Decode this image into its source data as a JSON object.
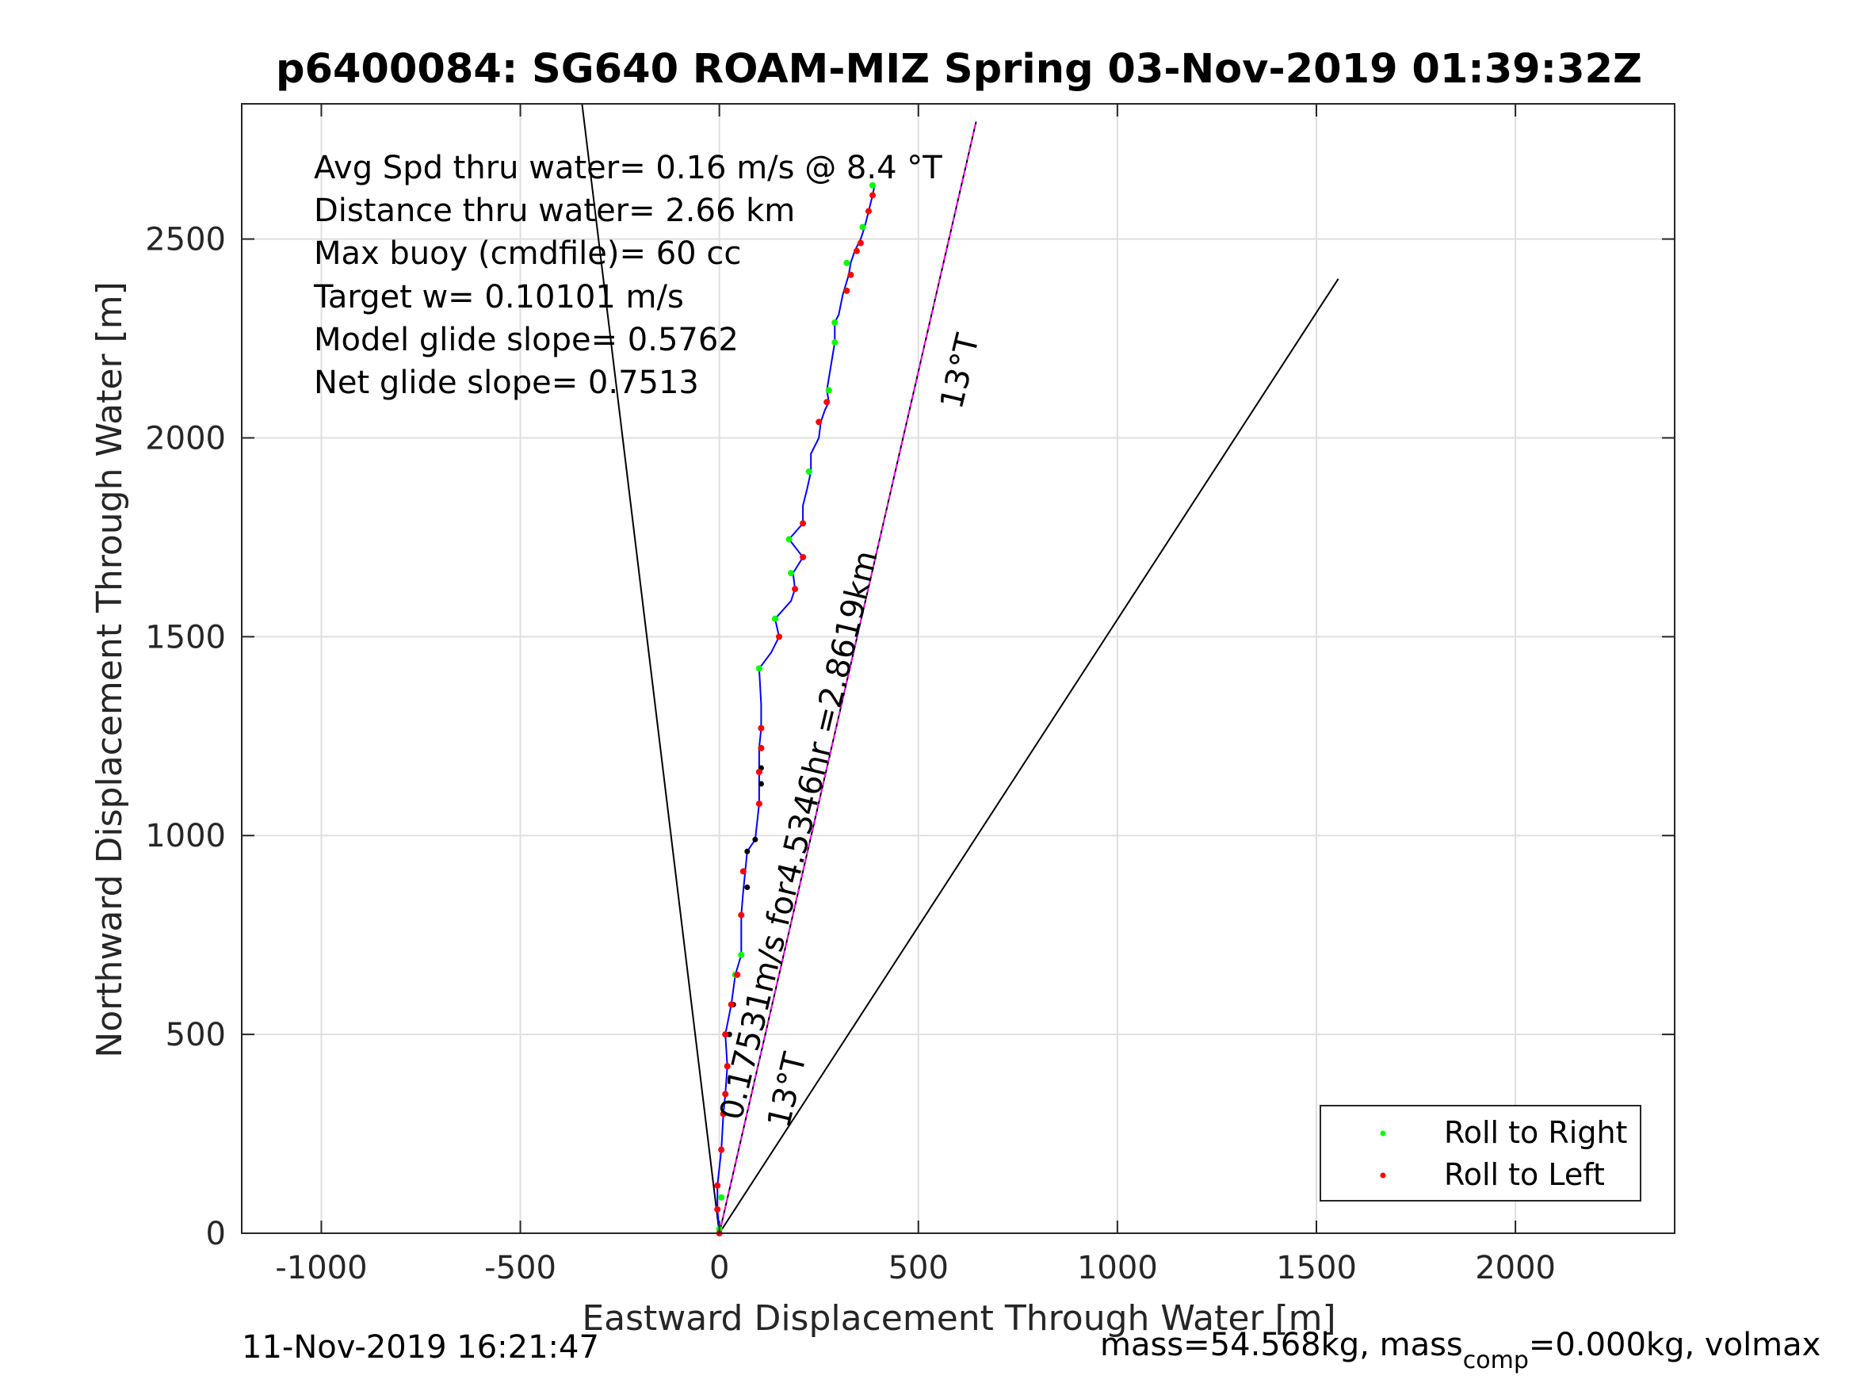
{
  "chart_data": {
    "type": "scatter",
    "title": "p6400084: SG640 ROAM-MIZ Spring 03-Nov-2019 01:39:32Z",
    "xlabel": "Eastward Displacement Through Water [m]",
    "ylabel": "Northward Displacement Through Water [m]",
    "xlim": [
      -1200,
      2400
    ],
    "ylim": [
      0,
      2840
    ],
    "xticks": [
      -1000,
      -500,
      0,
      500,
      1000,
      1500,
      2000
    ],
    "yticks": [
      0,
      500,
      1000,
      1500,
      2000,
      2500
    ],
    "grid": true,
    "legend_position": "bottom-right",
    "colors": {
      "track": "#0000ff",
      "right": "#00ff00",
      "left": "#ff0000",
      "point": "#000000",
      "current": "#ff00ff",
      "line": "#000000"
    },
    "stats": [
      "Avg Spd thru water=  0.16 m/s @   8.4 °T",
      "Distance thru water=  2.66 km",
      "Max buoy (cmdfile)= 60 cc",
      "Target w= 0.10101 m/s",
      "Model glide slope= 0.5762",
      "Net glide slope= 0.7513"
    ],
    "annotations": {
      "current_label": "0.17531m/s for4.5346hr =2.8619km",
      "heading_label_1": "13°T",
      "heading_label_2": "13°T"
    },
    "legend": [
      {
        "name": "Roll to Right",
        "color": "#00ff00"
      },
      {
        "name": "Roll to Left",
        "color": "#ff0000"
      }
    ],
    "heading_lines": [
      {
        "from": [
          0,
          0
        ],
        "to": [
          -345,
          2840
        ]
      },
      {
        "from": [
          0,
          0
        ],
        "to": [
          1555,
          2400
        ]
      },
      {
        "from": [
          0,
          0
        ],
        "to": [
          645,
          2795
        ]
      }
    ],
    "track": [
      [
        0,
        0
      ],
      [
        -5,
        60
      ],
      [
        -5,
        120
      ],
      [
        5,
        210
      ],
      [
        10,
        300
      ],
      [
        15,
        350
      ],
      [
        20,
        420
      ],
      [
        15,
        500
      ],
      [
        30,
        575
      ],
      [
        40,
        650
      ],
      [
        55,
        700
      ],
      [
        55,
        800
      ],
      [
        60,
        860
      ],
      [
        65,
        910
      ],
      [
        70,
        960
      ],
      [
        90,
        990
      ],
      [
        100,
        1080
      ],
      [
        100,
        1130
      ],
      [
        100,
        1160
      ],
      [
        100,
        1220
      ],
      [
        105,
        1270
      ],
      [
        105,
        1330
      ],
      [
        100,
        1420
      ],
      [
        130,
        1460
      ],
      [
        150,
        1500
      ],
      [
        140,
        1545
      ],
      [
        180,
        1590
      ],
      [
        190,
        1620
      ],
      [
        185,
        1660
      ],
      [
        210,
        1700
      ],
      [
        175,
        1745
      ],
      [
        210,
        1785
      ],
      [
        210,
        1830
      ],
      [
        220,
        1870
      ],
      [
        230,
        1915
      ],
      [
        230,
        1960
      ],
      [
        250,
        2000
      ],
      [
        255,
        2040
      ],
      [
        265,
        2070
      ],
      [
        275,
        2090
      ],
      [
        270,
        2120
      ],
      [
        280,
        2180
      ],
      [
        290,
        2240
      ],
      [
        290,
        2290
      ],
      [
        300,
        2310
      ],
      [
        310,
        2360
      ],
      [
        325,
        2410
      ],
      [
        330,
        2440
      ],
      [
        340,
        2470
      ],
      [
        355,
        2500
      ],
      [
        365,
        2530
      ],
      [
        375,
        2570
      ],
      [
        385,
        2610
      ],
      [
        390,
        2635
      ]
    ],
    "right_points": [
      [
        0,
        10
      ],
      [
        5,
        90
      ],
      [
        40,
        650
      ],
      [
        55,
        700
      ],
      [
        100,
        1420
      ],
      [
        140,
        1545
      ],
      [
        180,
        1660
      ],
      [
        175,
        1745
      ],
      [
        225,
        1915
      ],
      [
        275,
        2120
      ],
      [
        290,
        2240
      ],
      [
        290,
        2290
      ],
      [
        320,
        2440
      ],
      [
        360,
        2530
      ],
      [
        385,
        2635
      ]
    ],
    "left_points": [
      [
        0,
        0
      ],
      [
        -5,
        60
      ],
      [
        -5,
        120
      ],
      [
        5,
        210
      ],
      [
        10,
        300
      ],
      [
        15,
        350
      ],
      [
        20,
        420
      ],
      [
        15,
        500
      ],
      [
        30,
        575
      ],
      [
        45,
        650
      ],
      [
        55,
        800
      ],
      [
        60,
        910
      ],
      [
        100,
        1080
      ],
      [
        100,
        1160
      ],
      [
        105,
        1220
      ],
      [
        105,
        1270
      ],
      [
        150,
        1500
      ],
      [
        190,
        1620
      ],
      [
        210,
        1700
      ],
      [
        210,
        1785
      ],
      [
        250,
        2040
      ],
      [
        270,
        2090
      ],
      [
        320,
        2370
      ],
      [
        330,
        2410
      ],
      [
        345,
        2470
      ],
      [
        355,
        2490
      ],
      [
        375,
        2570
      ],
      [
        385,
        2610
      ]
    ],
    "black_points": [
      [
        25,
        500
      ],
      [
        35,
        575
      ],
      [
        70,
        870
      ],
      [
        70,
        960
      ],
      [
        90,
        990
      ],
      [
        105,
        1130
      ],
      [
        105,
        1170
      ]
    ],
    "current_line": [
      [
        0,
        0
      ],
      [
        645,
        2795
      ]
    ]
  },
  "footer": {
    "timestamp": "11-Nov-2019 16:21:47",
    "mass_prefix": "mass=54.568kg, mass",
    "mass_sub": "comp",
    "mass_suffix": "=0.000kg, volmax"
  }
}
